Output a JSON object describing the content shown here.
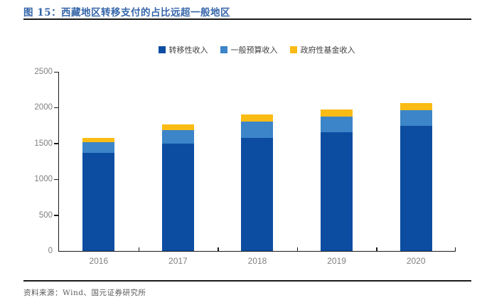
{
  "header": {
    "title": "图 15：西藏地区转移支付的占比远超一般地区"
  },
  "footer": {
    "source": "资料来源：Wind、国元证券研究所"
  },
  "colors": {
    "title_blue": "#3565A9",
    "series_transfer": "#0C4DA2",
    "series_budget": "#3B85C8",
    "series_fund": "#FABB15",
    "axis_text_gray": "#7F7F7F",
    "rule_black": "#1A1A1A"
  },
  "chart_data": {
    "type": "bar",
    "stacked": true,
    "title": "西藏地区转移支付的占比远超一般地区",
    "xlabel": "",
    "ylabel": "",
    "categories": [
      "2016",
      "2017",
      "2018",
      "2019",
      "2020"
    ],
    "series": [
      {
        "name": "转移性收入",
        "color": "#0C4DA2",
        "values": [
          1370,
          1495,
          1580,
          1660,
          1745
        ]
      },
      {
        "name": "一般预算收入",
        "color": "#3B85C8",
        "values": [
          145,
          190,
          225,
          220,
          215
        ]
      },
      {
        "name": "政府性基金收入",
        "color": "#FABB15",
        "values": [
          65,
          85,
          105,
          90,
          100
        ]
      }
    ],
    "stack_totals": [
      1580,
      1770,
      1910,
      1970,
      2060
    ],
    "ylim": [
      0,
      2500
    ],
    "yticks": [
      0,
      500,
      1000,
      1500,
      2000,
      2500
    ],
    "grid": false,
    "legend_position": "top"
  }
}
